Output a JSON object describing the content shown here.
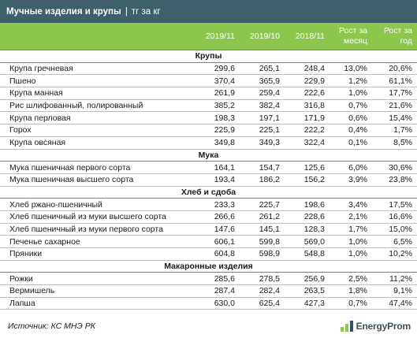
{
  "title": {
    "main": "Мучные изделия и крупы",
    "separator": "|",
    "unit": "тг за кг"
  },
  "columns": [
    "2019/11",
    "2019/10",
    "2018/11",
    "Рост за месяц",
    "Рост за год"
  ],
  "sections": [
    {
      "name": "Крупы",
      "rows": [
        {
          "name": "Крупа гречневая",
          "v1": "299,6",
          "v2": "265,1",
          "v3": "248,4",
          "m": "13,0%",
          "y": "20,6%"
        },
        {
          "name": "Пшено",
          "v1": "370,4",
          "v2": "365,9",
          "v3": "229,9",
          "m": "1,2%",
          "y": "61,1%"
        },
        {
          "name": "Крупа манная",
          "v1": "261,9",
          "v2": "259,4",
          "v3": "222,6",
          "m": "1,0%",
          "y": "17,7%"
        },
        {
          "name": "Рис шлифованный, полированный",
          "v1": "385,2",
          "v2": "382,4",
          "v3": "316,8",
          "m": "0,7%",
          "y": "21,6%"
        },
        {
          "name": "Крупа перловая",
          "v1": "198,3",
          "v2": "197,1",
          "v3": "171,9",
          "m": "0,6%",
          "y": "15,4%"
        },
        {
          "name": "Горох",
          "v1": "225,9",
          "v2": "225,1",
          "v3": "222,2",
          "m": "0,4%",
          "y": "1,7%"
        },
        {
          "name": "Крупа овсяная",
          "v1": "349,8",
          "v2": "349,3",
          "v3": "322,4",
          "m": "0,1%",
          "y": "8,5%"
        }
      ]
    },
    {
      "name": "Мука",
      "rows": [
        {
          "name": "Мука пшеничная первого сорта",
          "v1": "164,1",
          "v2": "154,7",
          "v3": "125,6",
          "m": "6,0%",
          "y": "30,6%"
        },
        {
          "name": "Мука пшеничная высшего сорта",
          "v1": "193,4",
          "v2": "186,2",
          "v3": "156,2",
          "m": "3,9%",
          "y": "23,8%"
        }
      ]
    },
    {
      "name": "Хлеб и сдоба",
      "rows": [
        {
          "name": "Хлеб ржано-пшеничный",
          "v1": "233,3",
          "v2": "225,7",
          "v3": "198,6",
          "m": "3,4%",
          "y": "17,5%"
        },
        {
          "name": "Хлеб пшеничный из муки высшего сорта",
          "v1": "266,6",
          "v2": "261,2",
          "v3": "228,6",
          "m": "2,1%",
          "y": "16,6%"
        },
        {
          "name": "Хлеб пшеничный из муки первого сорта",
          "v1": "147,6",
          "v2": "145,1",
          "v3": "128,3",
          "m": "1,7%",
          "y": "15,0%"
        },
        {
          "name": "Печенье сахарное",
          "v1": "606,1",
          "v2": "599,8",
          "v3": "569,0",
          "m": "1,0%",
          "y": "6,5%"
        },
        {
          "name": "Пряники",
          "v1": "604,8",
          "v2": "598,9",
          "v3": "548,8",
          "m": "1,0%",
          "y": "10,2%"
        }
      ]
    },
    {
      "name": "Макаронные изделия",
      "rows": [
        {
          "name": "Рожки",
          "v1": "285,6",
          "v2": "278,5",
          "v3": "256,9",
          "m": "2,5%",
          "y": "11,2%"
        },
        {
          "name": "Вермишель",
          "v1": "287,4",
          "v2": "282,4",
          "v3": "263,5",
          "m": "1,8%",
          "y": "9,1%"
        },
        {
          "name": "Лапша",
          "v1": "630,0",
          "v2": "625,4",
          "v3": "427,3",
          "m": "0,7%",
          "y": "47,4%"
        }
      ]
    }
  ],
  "footer": {
    "source": "Источник: КС МНЭ РК",
    "logo_text": "EnergyProm",
    "logo_icon": "energyprom-logo-icon",
    "brand_color": "#3d4f58",
    "accent_color": "#8dc64d",
    "title_bg": "#3f5f6a"
  }
}
